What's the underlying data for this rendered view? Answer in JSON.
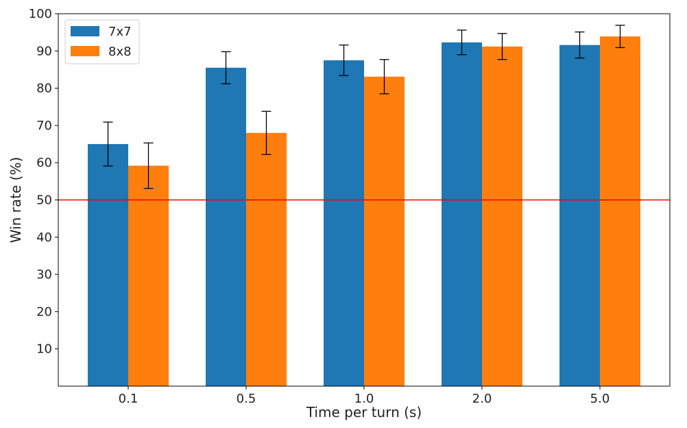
{
  "chart_data": {
    "type": "bar",
    "title": "",
    "xlabel": "Time per turn (s)",
    "ylabel": "Win rate (%)",
    "categories": [
      "0.1",
      "0.5",
      "1.0",
      "2.0",
      "5.0"
    ],
    "series": [
      {
        "name": "7x7",
        "color": "#1f77b4",
        "values": [
          65.0,
          85.5,
          87.5,
          92.3,
          91.6
        ],
        "error": [
          5.9,
          4.3,
          4.1,
          3.3,
          3.5
        ]
      },
      {
        "name": "8x8",
        "color": "#ff7f0e",
        "values": [
          59.2,
          68.0,
          83.1,
          91.2,
          93.9
        ],
        "error": [
          6.1,
          5.8,
          4.6,
          3.5,
          3.0
        ]
      }
    ],
    "ylim": [
      0,
      100
    ],
    "yticks": [
      10,
      20,
      30,
      40,
      50,
      60,
      70,
      80,
      90,
      100
    ],
    "reference_line": {
      "y": 50,
      "color": "#ff0000"
    },
    "legend": {
      "position": "top-left"
    },
    "grid": false
  }
}
